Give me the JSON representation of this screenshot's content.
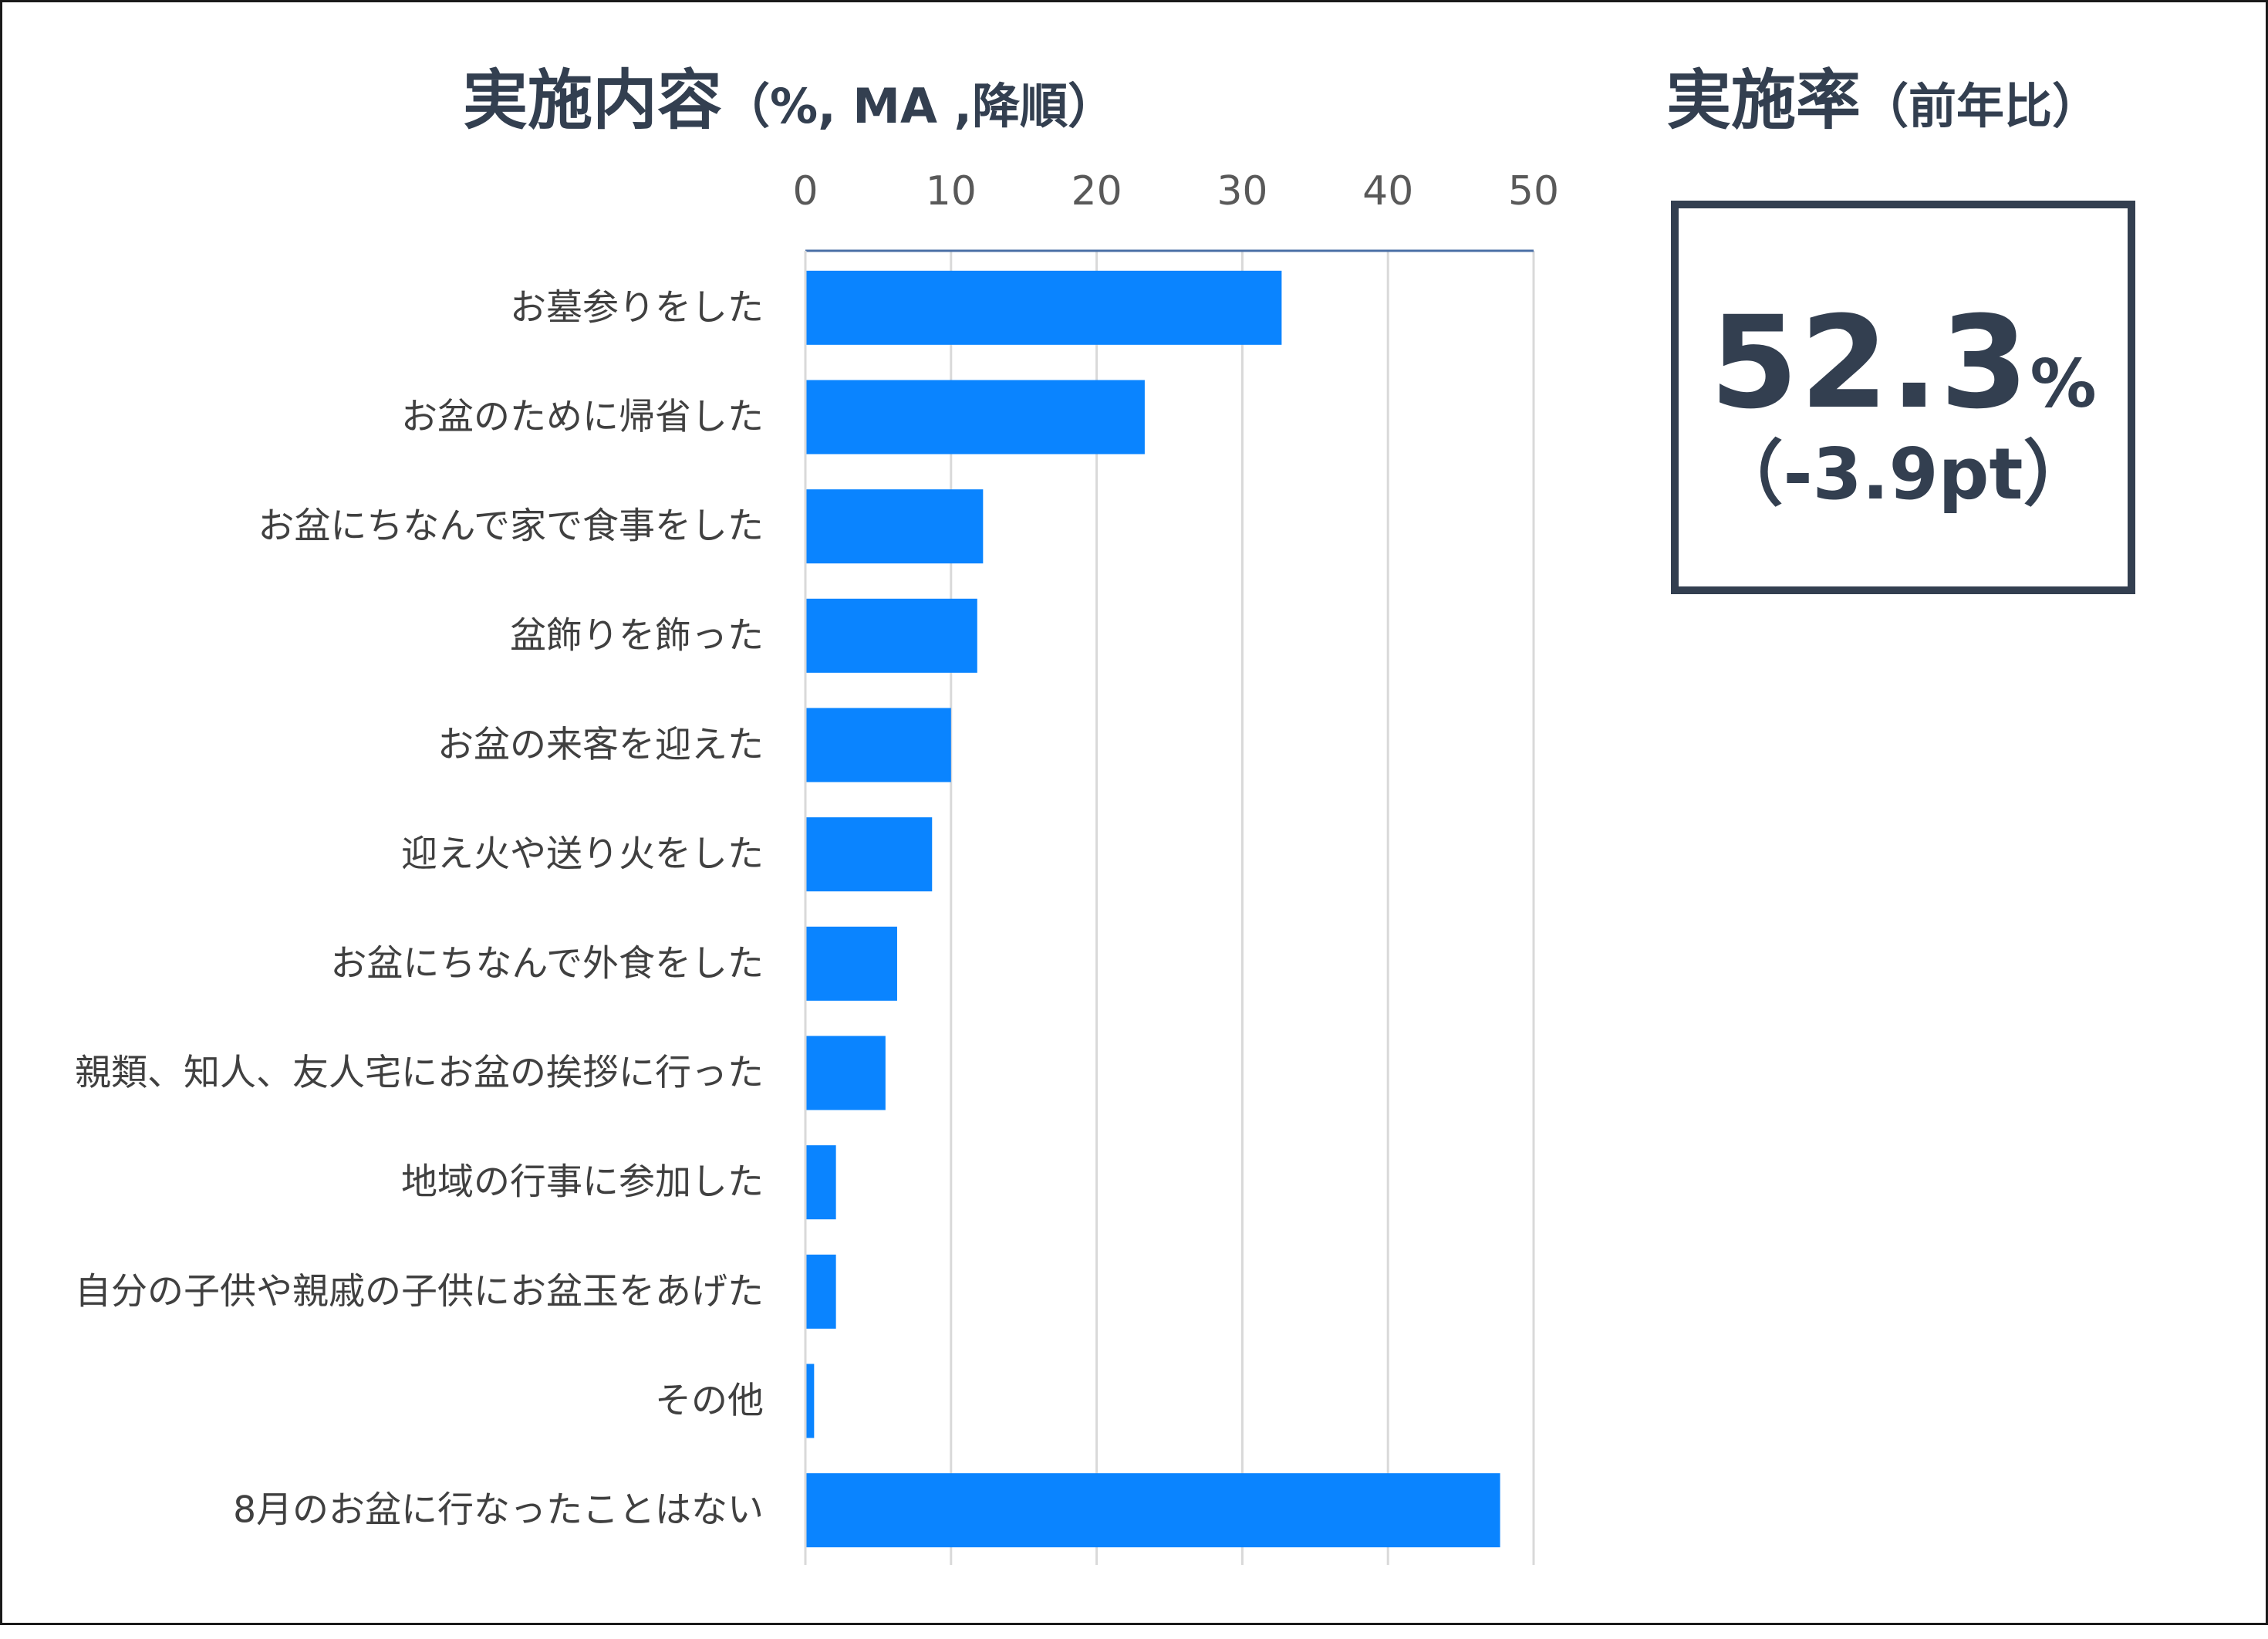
{
  "chart_data": {
    "type": "bar",
    "orientation": "horizontal",
    "title": "実施内容",
    "subtitle": "（%, MA ,降順）",
    "xlim": [
      0,
      50
    ],
    "ticks": [
      "0",
      "10",
      "20",
      "30",
      "40",
      "50"
    ],
    "tick_values": [
      0,
      10,
      20,
      30,
      40,
      50
    ],
    "grid": true,
    "bar_color": "#0a84ff",
    "categories": [
      "お墓参りをした",
      "お盆のために帰省した",
      "お盆にちなんで家で食事をした",
      "盆飾りを飾った",
      "お盆の来客を迎えた",
      "迎え火や送り火をした",
      "お盆にちなんで外食をした",
      "親類、知人、友人宅にお盆の挨拶に行った",
      "地域の行事に参加した",
      "自分の子供や親戚の子供にお盆玉をあげた",
      "その他",
      "8月のお盆に行なったことはない"
    ],
    "values": [
      32.7,
      23.3,
      12.2,
      11.8,
      10.0,
      8.7,
      6.3,
      5.5,
      2.1,
      2.1,
      0.6,
      47.7
    ]
  },
  "rate_panel": {
    "title": "実施率",
    "subtitle": "（前年比）",
    "value": "52.3",
    "unit": "%",
    "change": "（-3.9pt）",
    "text_color": "#333f50"
  }
}
